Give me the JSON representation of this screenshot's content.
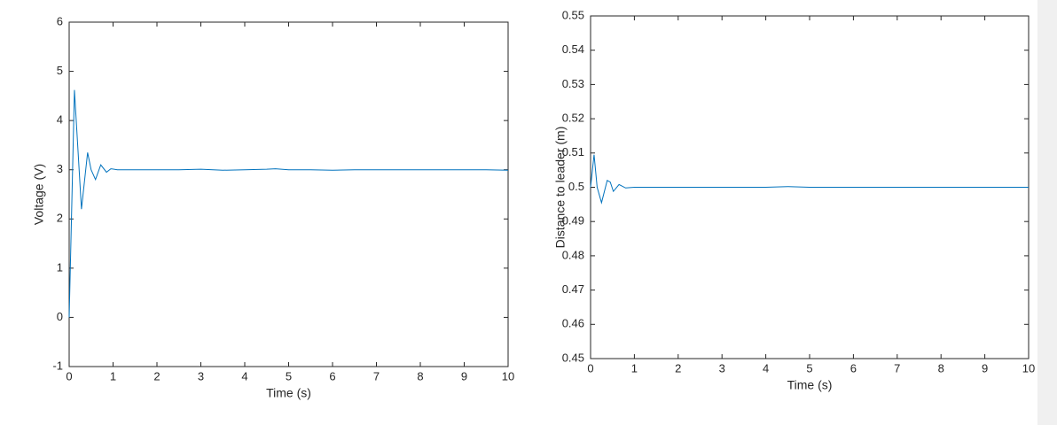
{
  "chart_data": [
    {
      "type": "line",
      "xlabel": "Time (s)",
      "ylabel": "Voltage (V)",
      "color": "#0072bd",
      "grid": false,
      "x": [
        0,
        0.12,
        0.28,
        0.42,
        0.5,
        0.6,
        0.72,
        0.85,
        0.95,
        1.1,
        1.5,
        2,
        2.5,
        3,
        3.5,
        4,
        4.5,
        4.7,
        5,
        5.5,
        6,
        6.5,
        7,
        7.5,
        8,
        8.5,
        9,
        9.5,
        10
      ],
      "values": [
        0,
        4.62,
        2.2,
        3.35,
        3.0,
        2.8,
        3.1,
        2.95,
        3.02,
        3.0,
        3.0,
        3.0,
        3.0,
        3.01,
        2.99,
        3.0,
        3.01,
        3.02,
        3.0,
        3.0,
        2.99,
        3.0,
        3.0,
        3.0,
        3.0,
        3.0,
        3.0,
        3.0,
        2.99
      ],
      "xlim": [
        0,
        10
      ],
      "xticks": [
        0,
        1,
        2,
        3,
        4,
        5,
        6,
        7,
        8,
        9,
        10
      ],
      "ylim": [
        -1,
        6
      ],
      "yticks": [
        -1,
        0,
        1,
        2,
        3,
        4,
        5,
        6
      ]
    },
    {
      "type": "line",
      "xlabel": "Time (s)",
      "ylabel": "Distance to leader (m)",
      "color": "#0072bd",
      "grid": false,
      "x": [
        0,
        0.08,
        0.15,
        0.25,
        0.38,
        0.45,
        0.52,
        0.65,
        0.8,
        1,
        2,
        3,
        4,
        4.5,
        5,
        6,
        7,
        8,
        9,
        10
      ],
      "values": [
        0.5,
        0.5095,
        0.5,
        0.4955,
        0.502,
        0.5015,
        0.4988,
        0.5008,
        0.4998,
        0.5,
        0.5,
        0.5,
        0.5,
        0.5002,
        0.5,
        0.5,
        0.5,
        0.5,
        0.5,
        0.5
      ],
      "xlim": [
        0,
        10
      ],
      "xticks": [
        0,
        1,
        2,
        3,
        4,
        5,
        6,
        7,
        8,
        9,
        10
      ],
      "ylim": [
        0.45,
        0.55
      ],
      "yticks": [
        0.45,
        0.46,
        0.47,
        0.48,
        0.49,
        0.5,
        0.51,
        0.52,
        0.53,
        0.54,
        0.55
      ]
    }
  ]
}
